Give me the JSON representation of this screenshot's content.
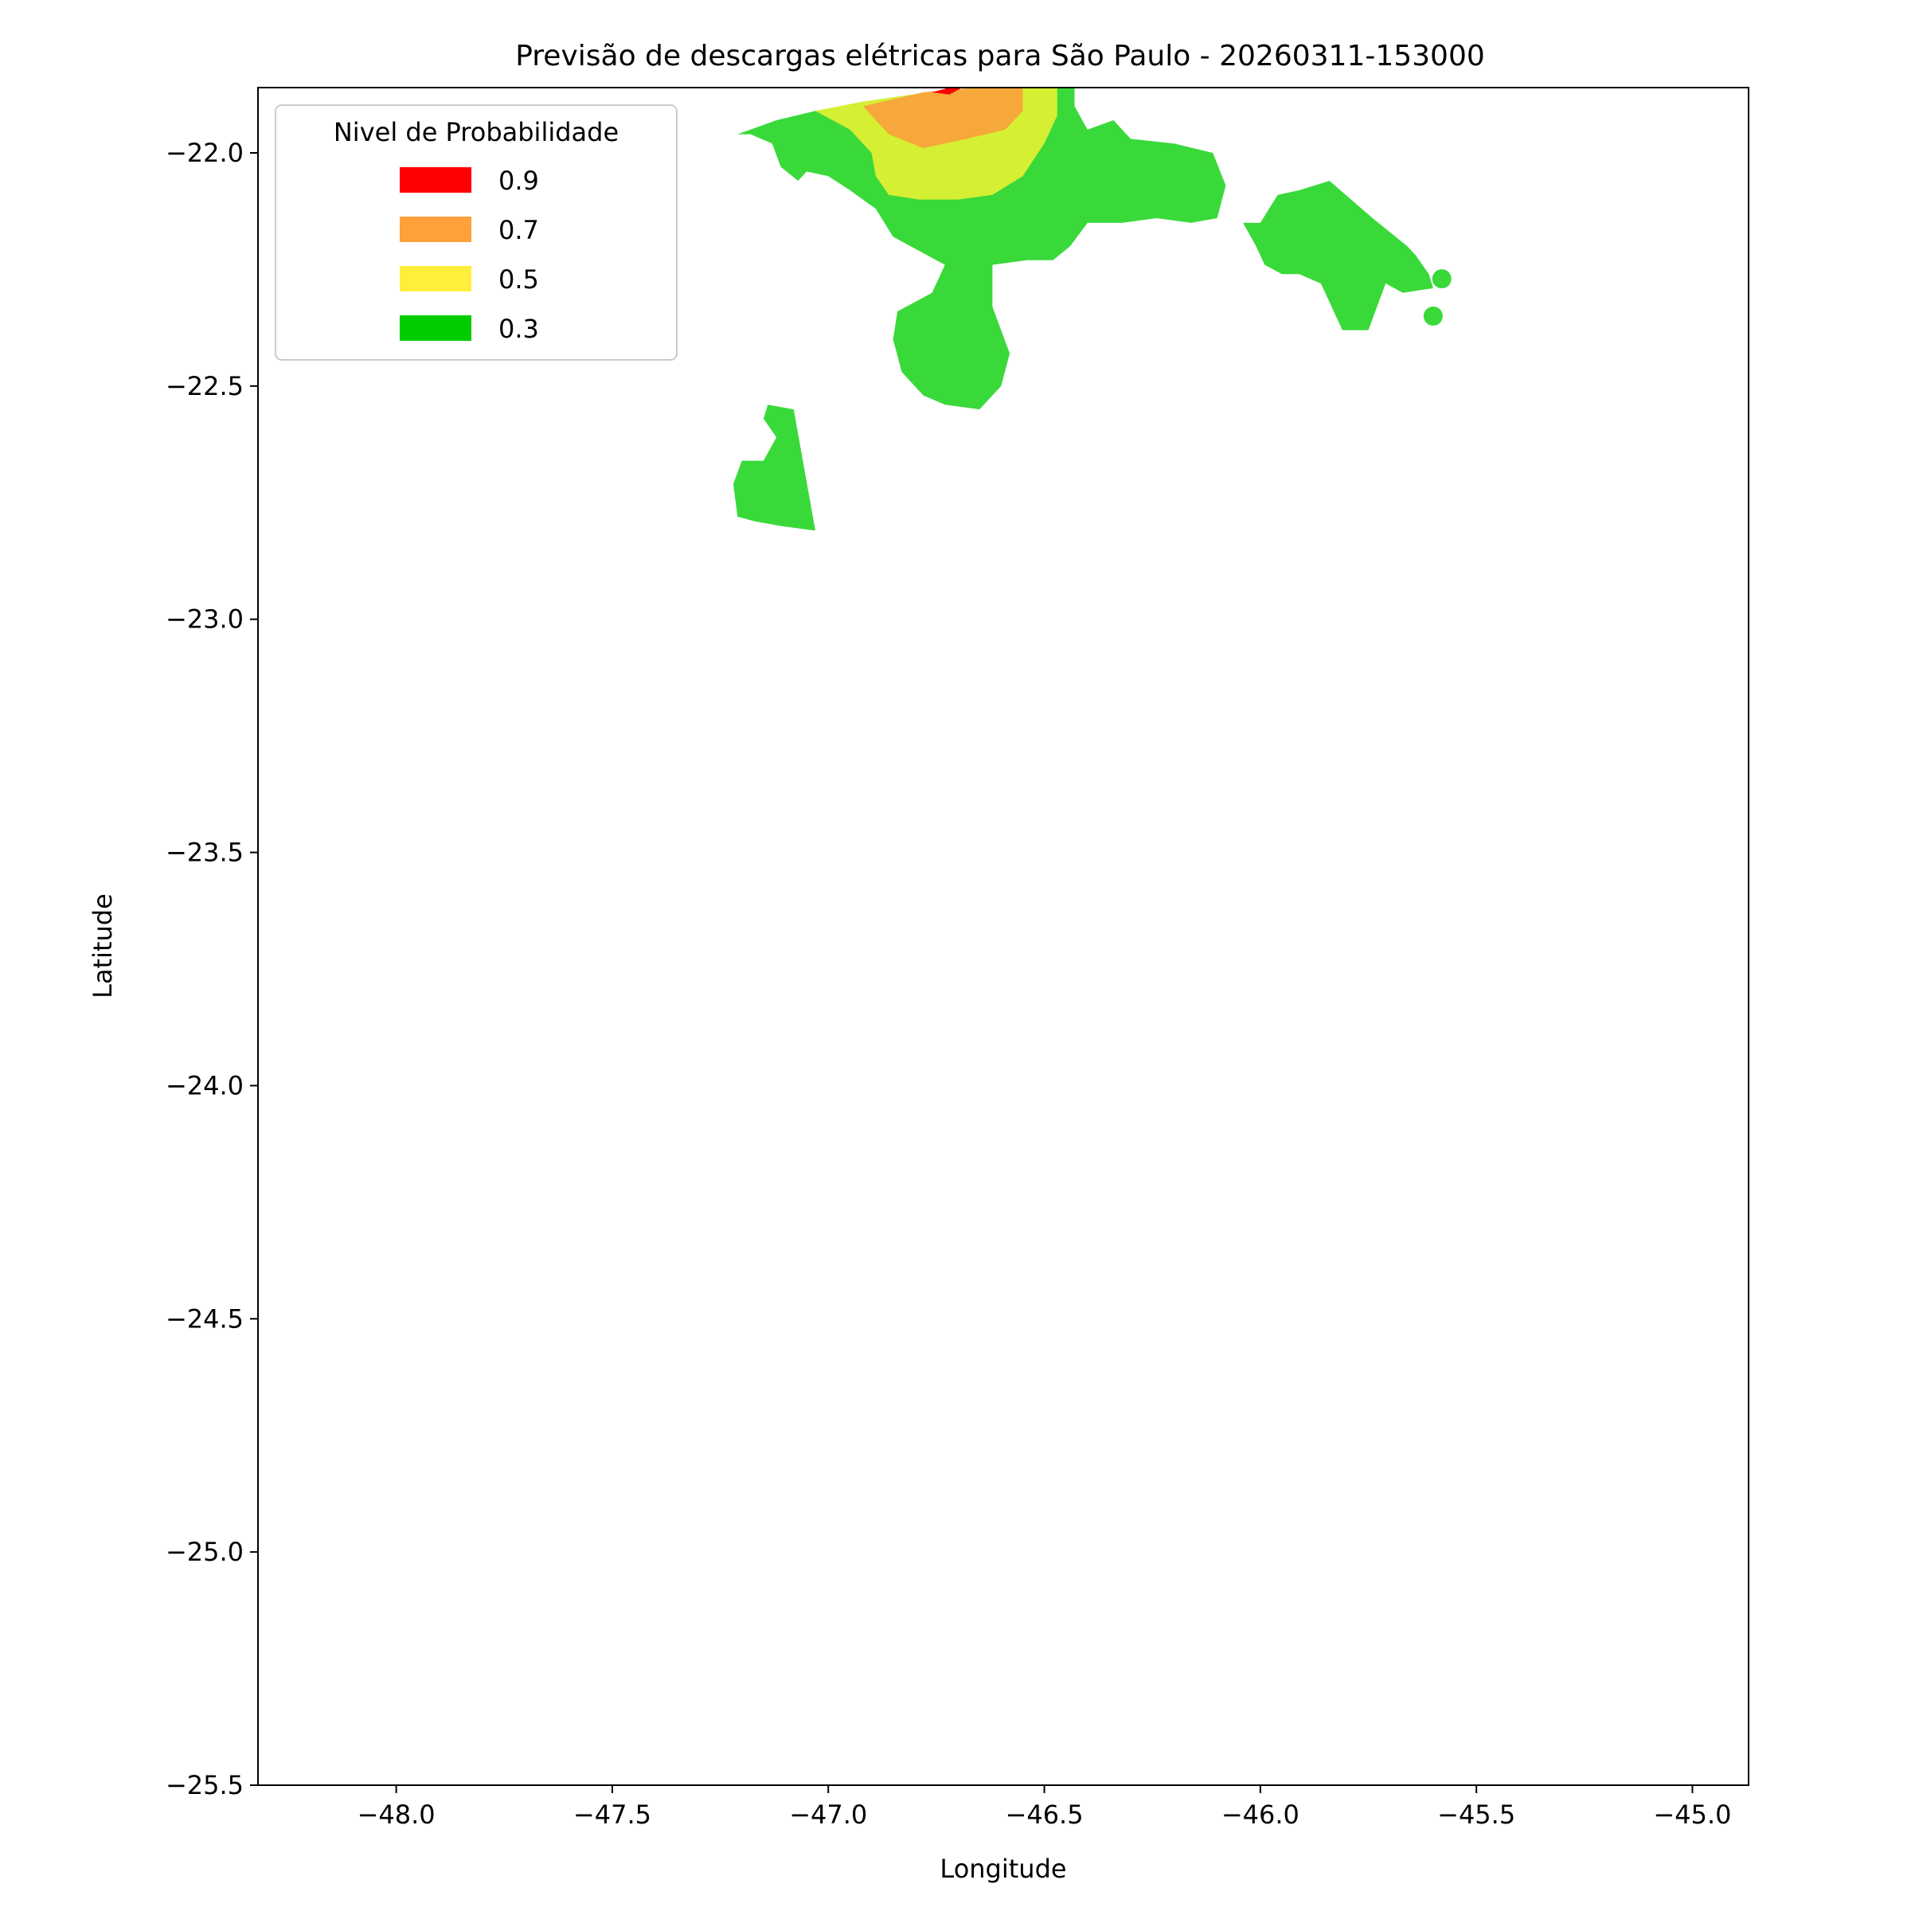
{
  "chart_data": {
    "type": "contour-map",
    "title": "Previsão de descargas elétricas para São Paulo - 20260311-153000",
    "xlabel": "Longitude",
    "ylabel": "Latitude",
    "xlim": [
      -48.32,
      -44.87
    ],
    "ylim": [
      -25.5,
      -21.86
    ],
    "xticks": [
      -48.0,
      -47.5,
      -47.0,
      -46.5,
      -46.0,
      -45.5,
      -45.0
    ],
    "xtick_labels": [
      "−48.0",
      "−47.5",
      "−47.0",
      "−46.5",
      "−46.0",
      "−45.5",
      "−45.0"
    ],
    "yticks": [
      -22.0,
      -22.5,
      -23.0,
      -23.5,
      -24.0,
      -24.5,
      -25.0,
      -25.5
    ],
    "ytick_labels": [
      "−22.0",
      "−22.5",
      "−23.0",
      "−23.5",
      "−24.0",
      "−24.5",
      "−25.0",
      "−25.5"
    ],
    "grid": false,
    "legend": {
      "title": "Nivel de Probabilidade",
      "placement": "top-left",
      "entries": [
        {
          "label": "0.9",
          "color": "#ff0000"
        },
        {
          "label": "0.7",
          "color": "#ffa03a"
        },
        {
          "label": "0.5",
          "color": "#ffee3a"
        },
        {
          "label": "0.3",
          "color": "#00cc00"
        }
      ]
    },
    "regions": [
      {
        "level": 0.3,
        "color": "#3ad93a",
        "polygon": [
          [
            -47.21,
            -21.96
          ],
          [
            -47.12,
            -21.93
          ],
          [
            -47.03,
            -21.91
          ],
          [
            -46.9,
            -21.89
          ],
          [
            -46.72,
            -21.87
          ],
          [
            -46.5,
            -21.86
          ],
          [
            -46.43,
            -21.86
          ],
          [
            -46.43,
            -21.9
          ],
          [
            -46.4,
            -21.95
          ],
          [
            -46.34,
            -21.93
          ],
          [
            -46.3,
            -21.97
          ],
          [
            -46.2,
            -21.98
          ],
          [
            -46.11,
            -22.0
          ],
          [
            -46.08,
            -22.07
          ],
          [
            -46.1,
            -22.14
          ],
          [
            -46.16,
            -22.15
          ],
          [
            -46.24,
            -22.14
          ],
          [
            -46.32,
            -22.15
          ],
          [
            -46.4,
            -22.15
          ],
          [
            -46.44,
            -22.2
          ],
          [
            -46.48,
            -22.23
          ],
          [
            -46.54,
            -22.23
          ],
          [
            -46.62,
            -22.24
          ],
          [
            -46.62,
            -22.33
          ],
          [
            -46.58,
            -22.43
          ],
          [
            -46.6,
            -22.5
          ],
          [
            -46.65,
            -22.55
          ],
          [
            -46.73,
            -22.54
          ],
          [
            -46.78,
            -22.52
          ],
          [
            -46.83,
            -22.47
          ],
          [
            -46.85,
            -22.4
          ],
          [
            -46.84,
            -22.34
          ],
          [
            -46.76,
            -22.3
          ],
          [
            -46.73,
            -22.24
          ],
          [
            -46.79,
            -22.21
          ],
          [
            -46.85,
            -22.18
          ],
          [
            -46.89,
            -22.12
          ],
          [
            -46.95,
            -22.08
          ],
          [
            -47.0,
            -22.05
          ],
          [
            -47.05,
            -22.04
          ],
          [
            -47.07,
            -22.06
          ],
          [
            -47.11,
            -22.03
          ],
          [
            -47.13,
            -21.98
          ],
          [
            -47.18,
            -21.96
          ]
        ]
      },
      {
        "level": 0.3,
        "color": "#3ad93a",
        "polygon": [
          [
            -47.22,
            -22.71
          ],
          [
            -47.2,
            -22.66
          ],
          [
            -47.15,
            -22.66
          ],
          [
            -47.12,
            -22.61
          ],
          [
            -47.15,
            -22.57
          ],
          [
            -47.14,
            -22.54
          ],
          [
            -47.08,
            -22.55
          ],
          [
            -47.03,
            -22.81
          ],
          [
            -47.11,
            -22.8
          ],
          [
            -47.17,
            -22.79
          ],
          [
            -47.21,
            -22.78
          ]
        ]
      },
      {
        "level": 0.3,
        "color": "#3ad93a",
        "polygon": [
          [
            -46.04,
            -22.15
          ],
          [
            -46.0,
            -22.15
          ],
          [
            -45.96,
            -22.09
          ],
          [
            -45.91,
            -22.08
          ],
          [
            -45.84,
            -22.06
          ],
          [
            -45.74,
            -22.14
          ],
          [
            -45.66,
            -22.2
          ],
          [
            -45.64,
            -22.22
          ],
          [
            -45.61,
            -22.26
          ],
          [
            -45.6,
            -22.29
          ],
          [
            -45.67,
            -22.3
          ],
          [
            -45.71,
            -22.28
          ],
          [
            -45.73,
            -22.33
          ],
          [
            -45.75,
            -22.38
          ],
          [
            -45.81,
            -22.38
          ],
          [
            -45.84,
            -22.32
          ],
          [
            -45.86,
            -22.28
          ],
          [
            -45.91,
            -22.26
          ],
          [
            -45.95,
            -22.26
          ],
          [
            -45.99,
            -22.24
          ],
          [
            -46.01,
            -22.2
          ]
        ]
      },
      {
        "level": 0.5,
        "color": "#d5ef33",
        "polygon": [
          [
            -47.03,
            -21.91
          ],
          [
            -46.92,
            -21.89
          ],
          [
            -46.77,
            -21.87
          ],
          [
            -46.6,
            -21.86
          ],
          [
            -46.47,
            -21.86
          ],
          [
            -46.47,
            -21.92
          ],
          [
            -46.5,
            -21.98
          ],
          [
            -46.55,
            -22.05
          ],
          [
            -46.62,
            -22.09
          ],
          [
            -46.7,
            -22.1
          ],
          [
            -46.79,
            -22.1
          ],
          [
            -46.86,
            -22.09
          ],
          [
            -46.89,
            -22.05
          ],
          [
            -46.9,
            -22.0
          ],
          [
            -46.95,
            -21.95
          ]
        ]
      },
      {
        "level": 0.7,
        "color": "#f6a83a",
        "polygon": [
          [
            -46.92,
            -21.9
          ],
          [
            -46.78,
            -21.87
          ],
          [
            -46.66,
            -21.86
          ],
          [
            -46.55,
            -21.86
          ],
          [
            -46.55,
            -21.91
          ],
          [
            -46.59,
            -21.95
          ],
          [
            -46.68,
            -21.97
          ],
          [
            -46.78,
            -21.99
          ],
          [
            -46.86,
            -21.96
          ]
        ]
      },
      {
        "level": 0.9,
        "color": "#ff0000",
        "polygon": [
          [
            -46.76,
            -21.87
          ],
          [
            -46.72,
            -21.86
          ],
          [
            -46.69,
            -21.86
          ],
          [
            -46.72,
            -21.875
          ]
        ]
      }
    ],
    "points": [
      {
        "level": 0.3,
        "color": "#3ad93a",
        "lon": -45.58,
        "lat": -22.27
      },
      {
        "level": 0.3,
        "color": "#3ad93a",
        "lon": -45.6,
        "lat": -22.35
      }
    ]
  }
}
